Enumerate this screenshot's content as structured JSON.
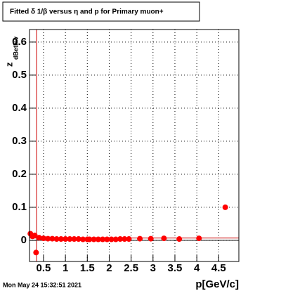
{
  "chart_data": {
    "type": "scatter",
    "title": "Fitted δ 1/β versus η and p for Primary muon+",
    "x_label": "p[GeV/c]",
    "y_label": "z",
    "y_label_sub": "dBetInv",
    "timestamp": "Mon May 24 15:32:51 2021",
    "xlim": [
      0.18,
      4.96
    ],
    "ylim": [
      -0.064,
      0.638
    ],
    "xticks": [
      0.5,
      1,
      1.5,
      2,
      2.5,
      3,
      3.5,
      4,
      4.5
    ],
    "yticks": [
      0,
      0.1,
      0.2,
      0.3,
      0.4,
      0.5,
      0.6
    ],
    "grid": true,
    "series": [
      {
        "name": "Primary muon+",
        "color": "#ff0000",
        "x": [
          0.2,
          0.25,
          0.3,
          0.33,
          0.4,
          0.5,
          0.6,
          0.7,
          0.8,
          0.9,
          1.0,
          1.1,
          1.2,
          1.3,
          1.4,
          1.5,
          1.55,
          1.65,
          1.75,
          1.85,
          1.95,
          2.05,
          2.15,
          2.25,
          2.35,
          2.45,
          2.7,
          2.95,
          3.25,
          3.6,
          4.05,
          4.65
        ],
        "values": [
          0.02,
          0.012,
          0.015,
          -0.037,
          0.008,
          0.006,
          0.005,
          0.005,
          0.004,
          0.004,
          0.004,
          0.004,
          0.004,
          0.004,
          0.003,
          0.003,
          0.003,
          0.003,
          0.003,
          0.003,
          0.003,
          0.003,
          0.003,
          0.004,
          0.004,
          0.004,
          0.005,
          0.005,
          0.006,
          0.004,
          0.006,
          0.1
        ]
      }
    ]
  }
}
